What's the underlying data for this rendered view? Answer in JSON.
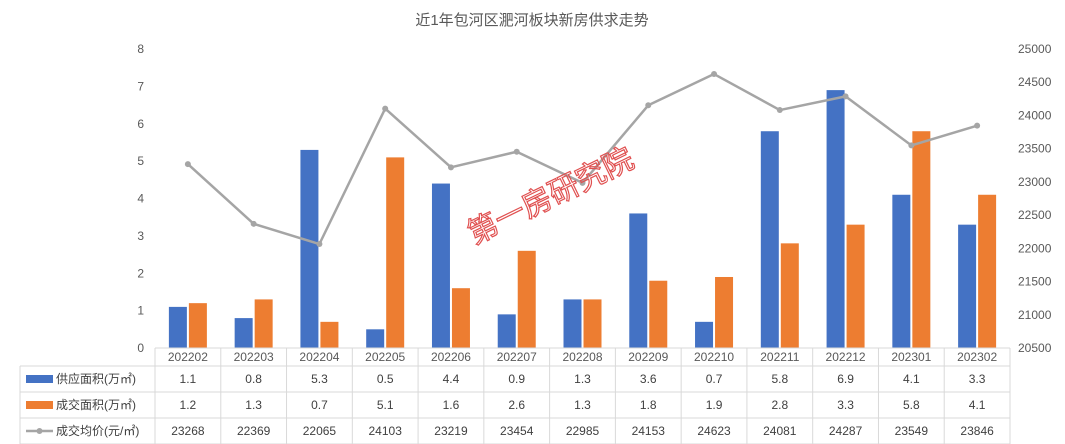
{
  "chart_data": {
    "type": "bar",
    "title": "近1年包河区淝河板块新房供求走势",
    "categories": [
      "202202",
      "202203",
      "202204",
      "202205",
      "202206",
      "202207",
      "202208",
      "202209",
      "202210",
      "202211",
      "202212",
      "202301",
      "202302"
    ],
    "series": [
      {
        "name": "供应面积(万㎡)",
        "type": "bar",
        "axis": "left",
        "color": "#4472C4",
        "values": [
          1.1,
          0.8,
          5.3,
          0.5,
          4.4,
          0.9,
          1.3,
          3.6,
          0.7,
          5.8,
          6.9,
          4.1,
          3.3
        ]
      },
      {
        "name": "成交面积(万㎡)",
        "type": "bar",
        "axis": "left",
        "color": "#ED7D31",
        "values": [
          1.2,
          1.3,
          0.7,
          5.1,
          1.6,
          2.6,
          1.3,
          1.8,
          1.9,
          2.8,
          3.3,
          5.8,
          4.1
        ]
      },
      {
        "name": "成交均价(元/㎡)",
        "type": "line",
        "axis": "right",
        "color": "#A5A5A5",
        "values": [
          23268,
          22369,
          22065,
          24103,
          23219,
          23454,
          22985,
          24153,
          24623,
          24081,
          24287,
          23549,
          23846
        ]
      }
    ],
    "y_left": {
      "min": 0,
      "max": 8,
      "ticks": [
        "0",
        "1",
        "2",
        "3",
        "4",
        "5",
        "6",
        "7",
        "8"
      ]
    },
    "y_right": {
      "min": 20500,
      "max": 25000,
      "ticks": [
        "20500",
        "21000",
        "21500",
        "22000",
        "22500",
        "23000",
        "23500",
        "24000",
        "24500",
        "25000"
      ]
    },
    "grid": false,
    "legend": "data-table-bottom",
    "watermark": "第一房研究院"
  }
}
